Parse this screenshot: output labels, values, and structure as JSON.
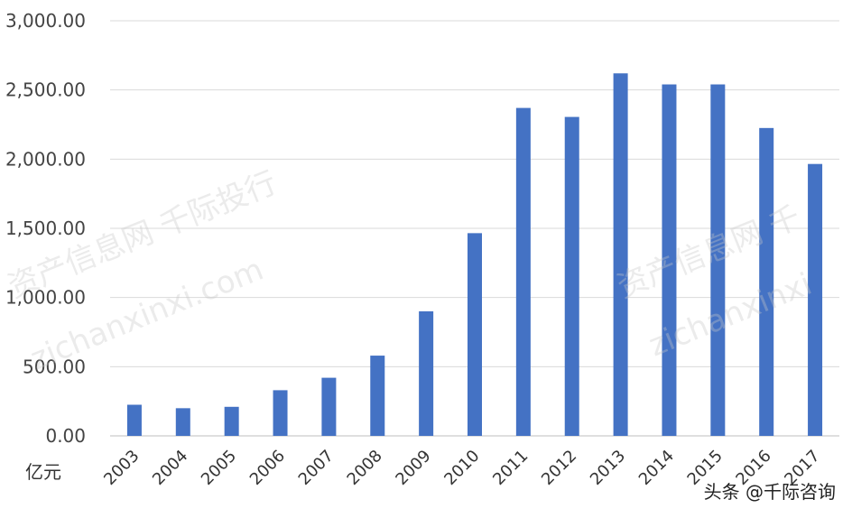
{
  "chart_data": {
    "type": "bar",
    "ylabel": "亿元",
    "categories": [
      "2003",
      "2004",
      "2005",
      "2006",
      "2007",
      "2008",
      "2009",
      "2010",
      "2011",
      "2012",
      "2013",
      "2014",
      "2015",
      "2016",
      "2017"
    ],
    "values": [
      225,
      200,
      210,
      330,
      420,
      580,
      900,
      1465,
      2370,
      2305,
      2620,
      2540,
      2540,
      2225,
      1965
    ],
    "ylim": [
      0,
      3000
    ],
    "yticks": [
      "0.00",
      "500.00",
      "1,000.00",
      "1,500.00",
      "2,000.00",
      "2,500.00",
      "3,000.00"
    ],
    "grid": true,
    "color": "#4472c4"
  },
  "watermarks": [
    "资产信息网 千际投行",
    "zichanxinxi.com",
    "资产信息网 千",
    "zichanxinxi"
  ],
  "credit": "头条 @千际咨询"
}
